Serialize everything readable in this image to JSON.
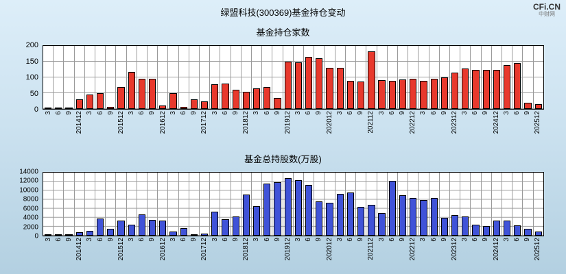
{
  "title": "绿盟科技(300369)基金持仓变动",
  "watermark": {
    "line1": "CFi.CN",
    "line2": "中财网"
  },
  "chart_data": [
    {
      "id": "holders",
      "type": "bar",
      "title": "基金持仓家数",
      "bar_color": "#e8392d",
      "ymax": 200,
      "ylim": [
        0,
        200
      ],
      "grid": true,
      "ticks": [
        0,
        50,
        100,
        150,
        200
      ],
      "categories": [
        "3",
        "6",
        "9",
        "201412",
        "3",
        "6",
        "9",
        "201512",
        "3",
        "6",
        "9",
        "201612",
        "3",
        "6",
        "9",
        "201712",
        "3",
        "6",
        "9",
        "201812",
        "3",
        "6",
        "9",
        "201912",
        "3",
        "6",
        "9",
        "202012",
        "3",
        "6",
        "9",
        "202112",
        "3",
        "6",
        "9",
        "202212",
        "3",
        "6",
        "9",
        "202312",
        "3",
        "6",
        "9",
        "202412",
        "3",
        "6",
        "9",
        "202512"
      ],
      "values": [
        2,
        3,
        3,
        30,
        45,
        50,
        6,
        70,
        118,
        95,
        96,
        10,
        50,
        6,
        30,
        25,
        78,
        80,
        60,
        55,
        65,
        70,
        35,
        150,
        148,
        165,
        160,
        130,
        130,
        90,
        88,
        182,
        92,
        90,
        93,
        95,
        90,
        95,
        100,
        115,
        128,
        125,
        123,
        125,
        140,
        145,
        20,
        15
      ]
    },
    {
      "id": "shares",
      "type": "bar",
      "title": "基金总持股数(万股)",
      "bar_color": "#4053d8",
      "ymax": 14000,
      "ylim": [
        0,
        14000
      ],
      "grid": true,
      "ticks": [
        0,
        2000,
        4000,
        6000,
        8000,
        10000,
        12000,
        14000
      ],
      "categories": [
        "3",
        "6",
        "9",
        "201412",
        "3",
        "6",
        "9",
        "201512",
        "3",
        "6",
        "9",
        "201612",
        "3",
        "6",
        "9",
        "201712",
        "3",
        "6",
        "9",
        "201812",
        "3",
        "6",
        "9",
        "201912",
        "3",
        "6",
        "9",
        "202012",
        "3",
        "6",
        "9",
        "202112",
        "3",
        "6",
        "9",
        "202212",
        "3",
        "6",
        "9",
        "202312",
        "3",
        "6",
        "9",
        "202412",
        "3",
        "6",
        "9",
        "202512"
      ],
      "values": [
        60,
        100,
        120,
        800,
        1100,
        3800,
        1500,
        3300,
        2400,
        4700,
        3500,
        3300,
        900,
        1700,
        300,
        500,
        5300,
        3600,
        4300,
        9200,
        6600,
        11500,
        11800,
        12800,
        12300,
        11200,
        7600,
        7300,
        9300,
        9600,
        6400,
        6900,
        5000,
        12200,
        9000,
        8300,
        7900,
        8300,
        3900,
        4600,
        4300,
        2500,
        2100,
        3300,
        3400,
        2300,
        1500,
        900
      ]
    }
  ]
}
